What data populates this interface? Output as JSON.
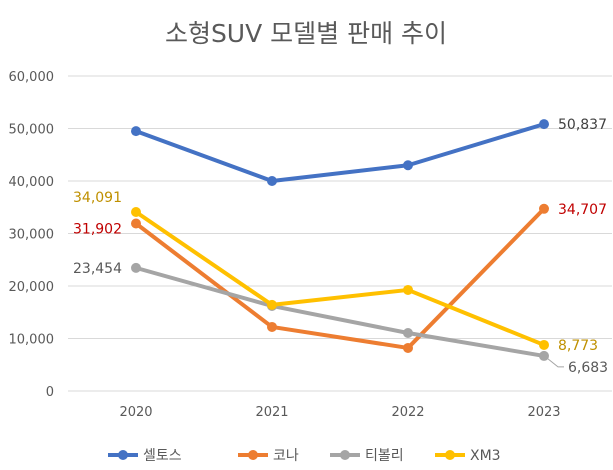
{
  "chart_data": {
    "type": "line",
    "title": "소형SUV 모델별 판매 추이",
    "xlabel": "",
    "ylabel": "",
    "categories": [
      "2020",
      "2021",
      "2022",
      "2023"
    ],
    "ylim": [
      0,
      60000
    ],
    "yticks": [
      0,
      10000,
      20000,
      30000,
      40000,
      50000,
      60000
    ],
    "ytick_labels": [
      "0",
      "10,000",
      "20,000",
      "30,000",
      "40,000",
      "50,000",
      "60,000"
    ],
    "grid": true,
    "legend_position": "bottom",
    "series": [
      {
        "name": "셀토스",
        "color": "#4472c4",
        "values": [
          49500,
          40000,
          43000,
          50837
        ],
        "labels": [
          null,
          null,
          null,
          "50,837"
        ],
        "label_color": "#404040"
      },
      {
        "name": "코나",
        "color": "#ed7d31",
        "values": [
          31902,
          12200,
          8200,
          34707
        ],
        "labels": [
          "31,902",
          null,
          null,
          "34,707"
        ],
        "label_color": "#c00000"
      },
      {
        "name": "티볼리",
        "color": "#a5a5a5",
        "values": [
          23454,
          16200,
          11050,
          6683
        ],
        "labels": [
          "23,454",
          null,
          null,
          "6,683"
        ],
        "label_color": "#595959"
      },
      {
        "name": "XM3",
        "color": "#ffc000",
        "values": [
          34091,
          16400,
          19250,
          8773
        ],
        "labels": [
          "34,091",
          null,
          null,
          "8,773"
        ],
        "label_color": "#bf9000"
      }
    ]
  }
}
